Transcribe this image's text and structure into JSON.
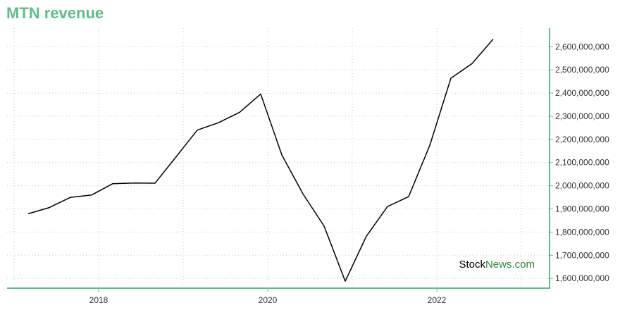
{
  "chart_data": {
    "type": "line",
    "title": "MTN revenue",
    "xlabel": "",
    "ylabel": "",
    "x": [
      "2017-03",
      "2017-06",
      "2017-09",
      "2017-12",
      "2018-03",
      "2018-06",
      "2018-09",
      "2018-12",
      "2019-03",
      "2019-06",
      "2019-09",
      "2019-12",
      "2020-03",
      "2020-06",
      "2020-09",
      "2020-12",
      "2021-03",
      "2021-06",
      "2021-09",
      "2021-12",
      "2022-03",
      "2022-06",
      "2022-09"
    ],
    "series": [
      {
        "values": [
          1879000000,
          1906000000,
          1950000000,
          1960000000,
          2009000000,
          2012000000,
          2011000000,
          2125000000,
          2240000000,
          2272000000,
          2317000000,
          2396000000,
          2133000000,
          1965000000,
          1826000000,
          1588000000,
          1782000000,
          1910000000,
          1953000000,
          2174000000,
          2464000000,
          2527000000,
          2633000000
        ]
      }
    ],
    "x_ticks": [
      "2018",
      "2020",
      "2022"
    ],
    "y_ticks": [
      1600000000,
      1700000000,
      1800000000,
      1900000000,
      2000000000,
      2100000000,
      2200000000,
      2300000000,
      2400000000,
      2500000000,
      2600000000
    ],
    "y_tick_labels": [
      "1,600,000,000",
      "1,700,000,000",
      "1,800,000,000",
      "1,900,000,000",
      "2,000,000,000",
      "2,100,000,000",
      "2,200,000,000",
      "2,300,000,000",
      "2,400,000,000",
      "2,500,000,000",
      "2,600,000,000"
    ],
    "ylim": [
      1558000000,
      2680000000
    ],
    "xlim": [
      "2016-12",
      "2023-05"
    ],
    "grid": true,
    "y_axis_side": "right",
    "colors": {
      "line": "#000000",
      "axis": "#5cbf8a",
      "grid": "#a8d8c6",
      "title": "#5cbf8a"
    }
  },
  "watermark": {
    "part1": "Stock",
    "part2": "News",
    "part3": ".com"
  }
}
